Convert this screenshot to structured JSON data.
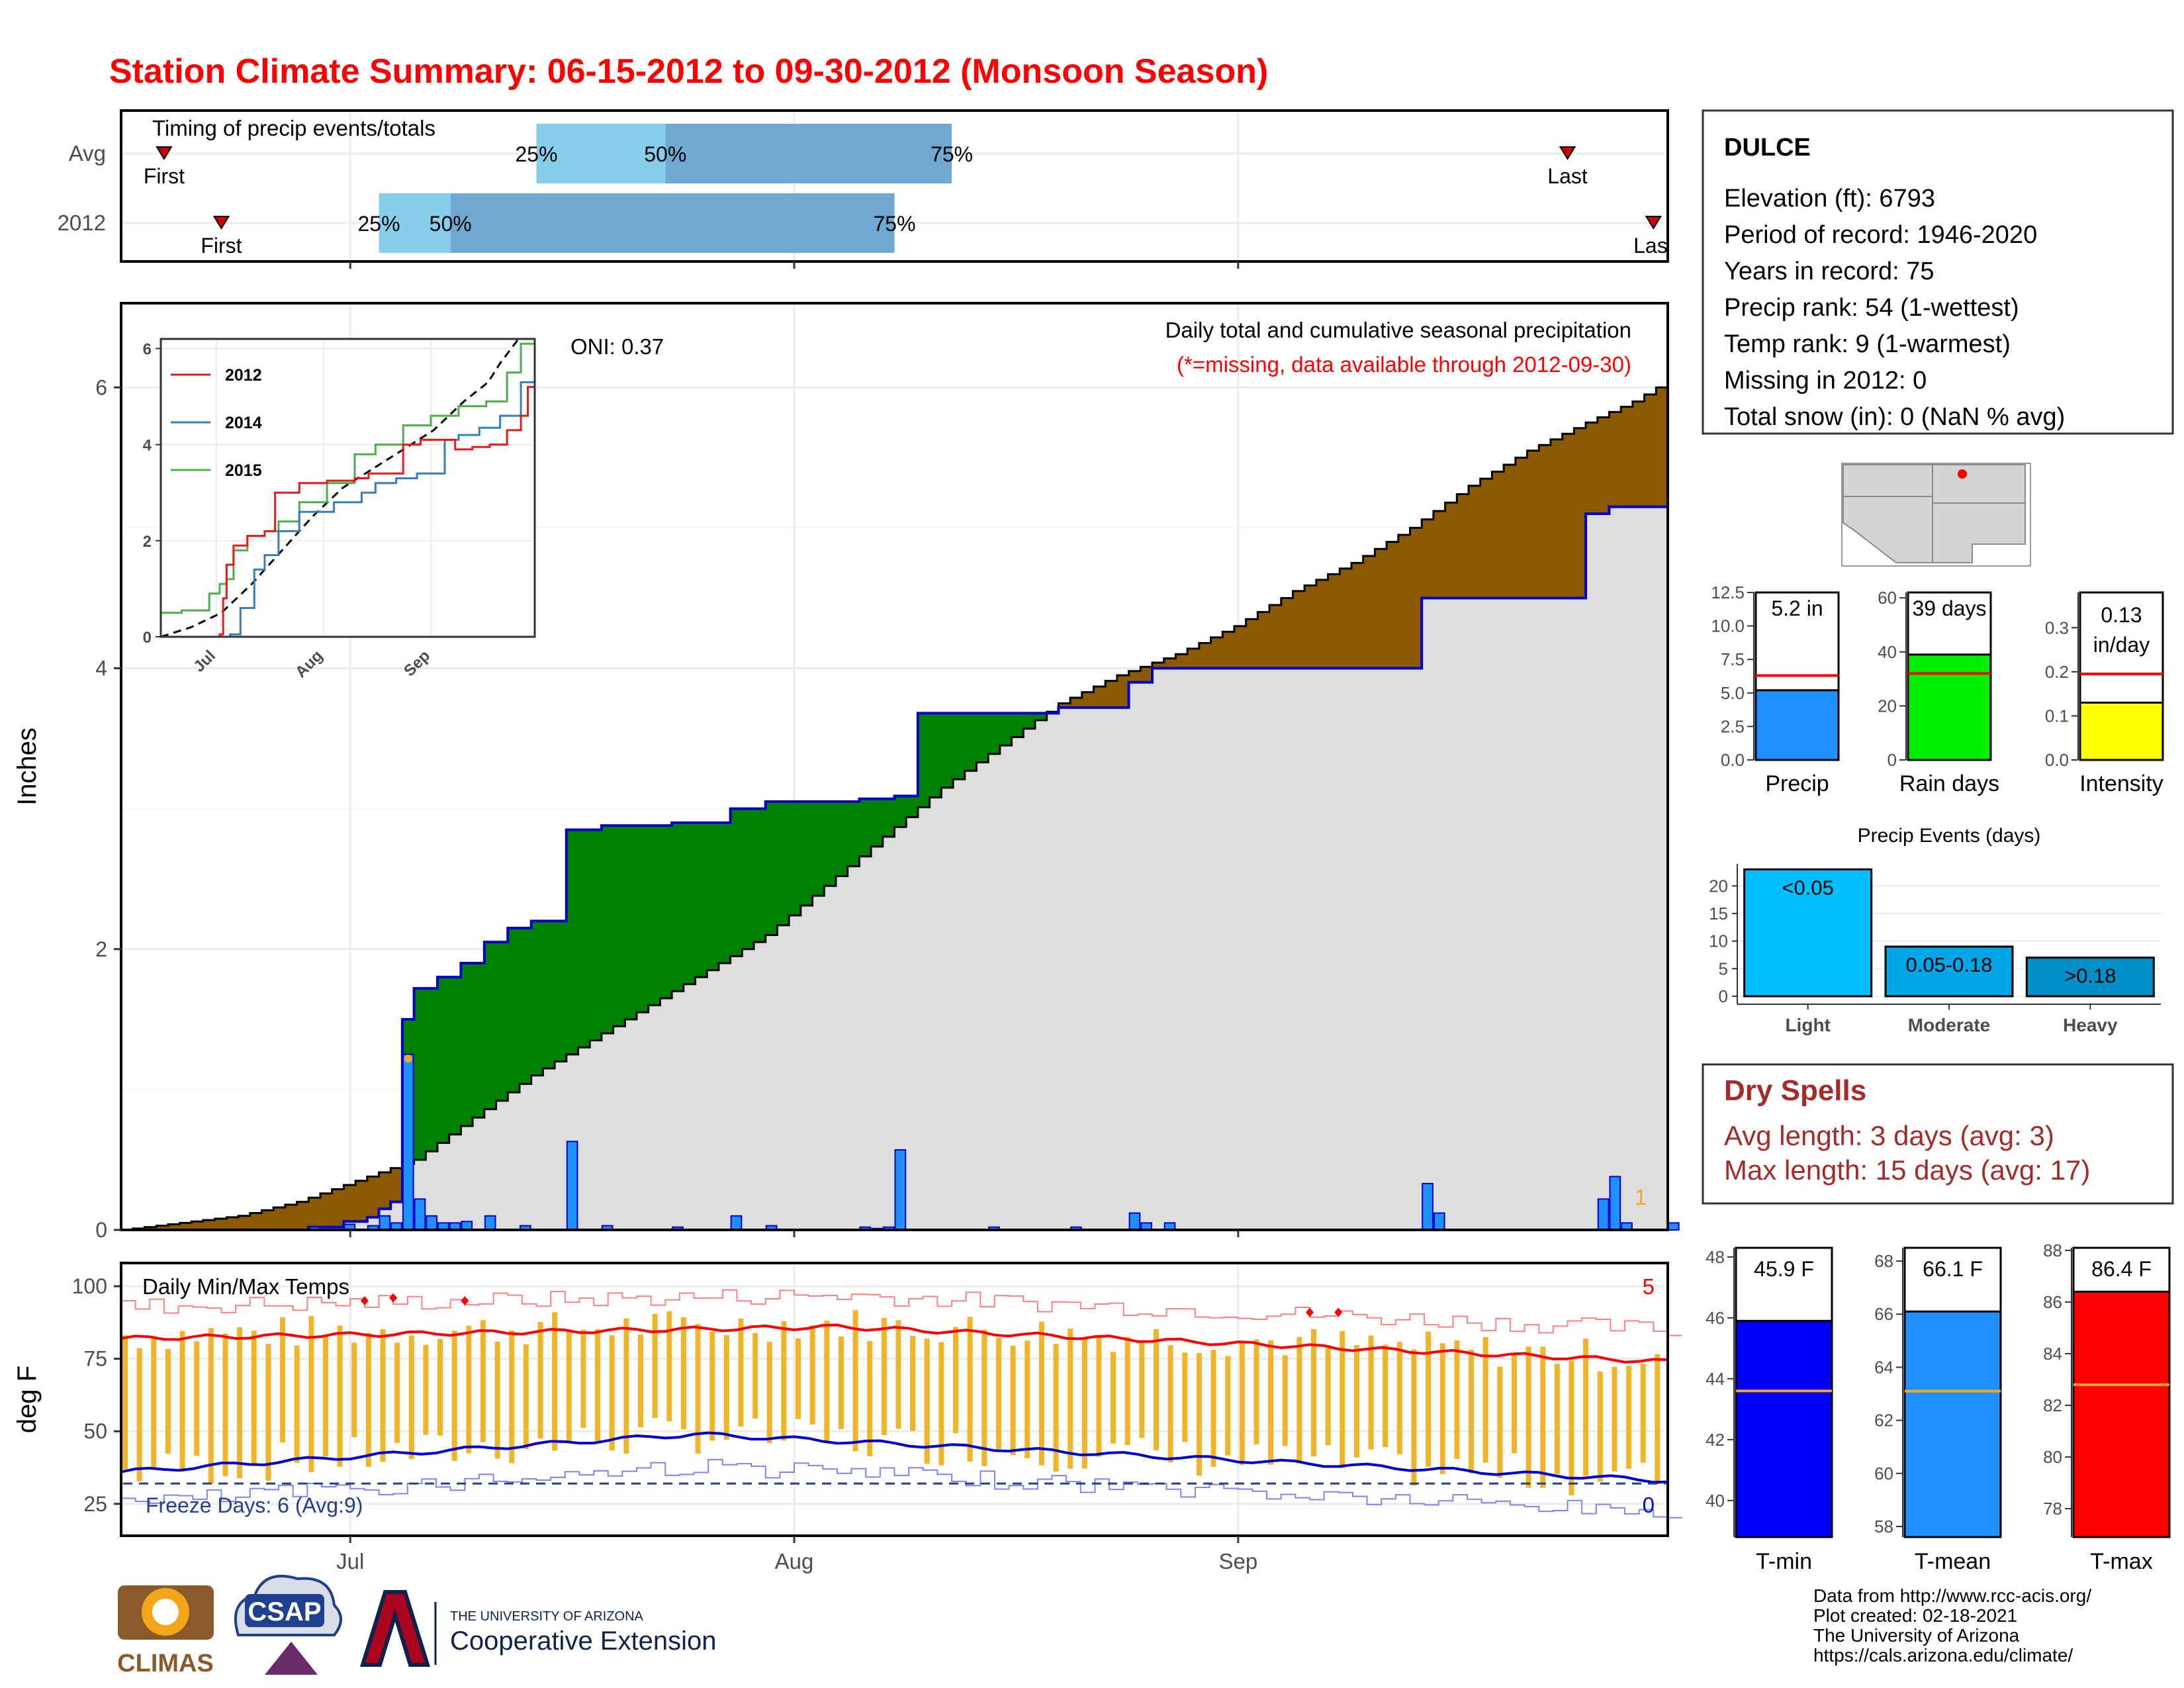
{
  "title": "Station Climate Summary: 06-15-2012 to 09-30-2012 (Monsoon Season)",
  "timing": {
    "title": "Timing of precip events/totals",
    "rows": [
      "Avg",
      "2012"
    ],
    "first_label": "First",
    "last_label": "Last",
    "pct_labels": [
      "25%",
      "50%",
      "75%"
    ],
    "avg": {
      "first": "2012-06-18",
      "p25": "2012-07-14",
      "p50": "2012-07-23",
      "p75": "2012-08-12",
      "last": "2012-09-24"
    },
    "y2012": {
      "first": "2012-06-22",
      "p25": "2012-07-03",
      "p50": "2012-07-08",
      "p75": "2012-08-08",
      "last": "2012-09-30"
    }
  },
  "precip_panel": {
    "ylabel": "Inches",
    "oni": "ONI: 0.37",
    "note1": "Daily total and cumulative seasonal precipitation",
    "note2": "(*=missing, data available through 2012-09-30)",
    "missing_count": "1",
    "inset": {
      "series": [
        {
          "name": "2012",
          "color": "#e41a1c"
        },
        {
          "name": "2014",
          "color": "#377eb8"
        },
        {
          "name": "2015",
          "color": "#4daf4a"
        }
      ],
      "yticks": [
        "0",
        "2",
        "4",
        "6"
      ],
      "xticks": [
        "Jul",
        "Aug",
        "Sep"
      ]
    }
  },
  "temp_panel": {
    "ylabel": "deg F",
    "title": "Daily Min/Max Temps",
    "freeze": "Freeze Days: 6 (Avg:9)",
    "max_count": "5",
    "min_count": "0"
  },
  "xticks": [
    "Jul",
    "Aug",
    "Sep"
  ],
  "station": {
    "name": "DULCE",
    "lines": [
      "Elevation (ft): 6793",
      "Period of record: 1946-2020",
      "Years in record: 75",
      "Precip rank: 54 (1-wettest)",
      "Temp rank: 9 (1-warmest)",
      "Missing in 2012: 0",
      "Total snow (in): 0 (NaN % avg)"
    ]
  },
  "summary_bars": [
    {
      "label": "Precip",
      "value_text": "5.2 in",
      "value": 5.2,
      "avg": 6.3,
      "ymax": 12.5,
      "ticks": [
        "0.0",
        "2.5",
        "5.0",
        "7.5",
        "10.0",
        "12.5"
      ],
      "color": "#1e90ff"
    },
    {
      "label": "Rain days",
      "value_text": "39 days",
      "value": 39,
      "avg": 32,
      "ymax": 62,
      "ticks": [
        "0",
        "20",
        "40",
        "60"
      ],
      "color": "#00ee00"
    },
    {
      "label": "Intensity",
      "value_text": "0.13 in/day",
      "value": 0.13,
      "avg": 0.195,
      "ymax": 0.38,
      "ticks": [
        "0.0",
        "0.1",
        "0.2",
        "0.3"
      ],
      "color": "#ffff00"
    }
  ],
  "events": {
    "title": "Precip Events (days)",
    "categories": [
      "Light",
      "Moderate",
      "Heavy"
    ],
    "labels": [
      "<0.05",
      "0.05-0.18",
      ">0.18"
    ],
    "values": [
      23,
      9,
      7
    ],
    "colors": [
      "#00bfff",
      "#00a5e6",
      "#008fc6"
    ],
    "ticks": [
      "0",
      "5",
      "10",
      "15",
      "20"
    ]
  },
  "dry_spells": {
    "title": "Dry Spells",
    "avg": "Avg length: 3 days (avg: 3)",
    "max": "Max length: 15 days (avg: 17)"
  },
  "temp_bars": [
    {
      "label": "T-min",
      "value_text": "45.9 F",
      "value": 45.9,
      "avg": 43.6,
      "ymin": 38.8,
      "ymax": 48.3,
      "ticks": [
        "40",
        "42",
        "44",
        "46",
        "48"
      ],
      "color": "#0000ff"
    },
    {
      "label": "T-mean",
      "value_text": "66.1 F",
      "value": 66.1,
      "avg": 63.1,
      "ymin": 57.6,
      "ymax": 68.5,
      "ticks": [
        "58",
        "60",
        "62",
        "64",
        "66",
        "68"
      ],
      "color": "#1e90ff"
    },
    {
      "label": "T-max",
      "value_text": "86.4 F",
      "value": 86.4,
      "avg": 82.8,
      "ymin": 76.9,
      "ymax": 88.1,
      "ticks": [
        "78",
        "80",
        "82",
        "84",
        "86",
        "88"
      ],
      "color": "#ff0000"
    }
  ],
  "footer": {
    "logos": [
      "CLIMAS",
      "CSAP",
      "THE UNIVERSITY OF ARIZONA",
      "Cooperative Extension"
    ],
    "credits": [
      "Data from http://www.rcc-acis.org/",
      "Plot created: 02-18-2021",
      "The University of Arizona",
      "https://cals.arizona.edu/climate/"
    ]
  },
  "chart_data": {
    "type": "area",
    "title": "Daily total and cumulative seasonal precipitation",
    "ylabel": "Inches",
    "ylim": [
      0,
      6.6
    ],
    "xlim": [
      "2012-06-15",
      "2012-09-30"
    ],
    "cumulative_avg": [
      [
        0,
        0
      ],
      [
        5,
        0.05
      ],
      [
        10,
        0.1
      ],
      [
        15,
        0.2
      ],
      [
        20,
        0.35
      ],
      [
        25,
        0.5
      ],
      [
        30,
        0.8
      ],
      [
        35,
        1.1
      ],
      [
        40,
        1.35
      ],
      [
        45,
        1.6
      ],
      [
        50,
        1.85
      ],
      [
        55,
        2.1
      ],
      [
        60,
        2.45
      ],
      [
        65,
        2.8
      ],
      [
        70,
        3.15
      ],
      [
        75,
        3.45
      ],
      [
        80,
        3.75
      ],
      [
        85,
        3.95
      ],
      [
        90,
        4.1
      ],
      [
        95,
        4.3
      ],
      [
        100,
        4.55
      ],
      [
        105,
        4.75
      ],
      [
        110,
        5.0
      ],
      [
        115,
        5.3
      ],
      [
        120,
        5.55
      ],
      [
        125,
        5.75
      ],
      [
        129,
        5.9
      ],
      [
        132,
        6.05
      ]
    ],
    "cumulative_2012": [
      [
        0,
        0
      ],
      [
        16,
        0.02
      ],
      [
        19,
        0.06
      ],
      [
        21,
        0.09
      ],
      [
        22,
        0.15
      ],
      [
        23,
        0.2
      ],
      [
        24,
        1.5
      ],
      [
        25,
        1.72
      ],
      [
        27,
        1.8
      ],
      [
        29,
        1.9
      ],
      [
        31,
        2.05
      ],
      [
        33,
        2.15
      ],
      [
        35,
        2.2
      ],
      [
        38,
        2.85
      ],
      [
        41,
        2.88
      ],
      [
        47,
        2.9
      ],
      [
        52,
        3.0
      ],
      [
        55,
        3.05
      ],
      [
        63,
        3.07
      ],
      [
        66,
        3.09
      ],
      [
        68,
        3.68
      ],
      [
        80,
        3.72
      ],
      [
        85,
        3.72
      ],
      [
        86,
        3.9
      ],
      [
        88,
        4.0
      ],
      [
        110,
        4.0
      ],
      [
        111,
        4.5
      ],
      [
        124,
        4.5
      ],
      [
        125,
        5.1
      ],
      [
        127,
        5.15
      ],
      [
        132,
        5.2
      ]
    ],
    "daily_2012": [
      [
        16,
        0.02
      ],
      [
        19,
        0.04
      ],
      [
        21,
        0.03
      ],
      [
        22,
        0.1
      ],
      [
        23,
        0.05
      ],
      [
        24,
        1.25
      ],
      [
        25,
        0.22
      ],
      [
        26,
        0.1
      ],
      [
        27,
        0.05
      ],
      [
        28,
        0.05
      ],
      [
        29,
        0.06
      ],
      [
        31,
        0.1
      ],
      [
        34,
        0.03
      ],
      [
        38,
        0.63
      ],
      [
        41,
        0.03
      ],
      [
        47,
        0.02
      ],
      [
        52,
        0.1
      ],
      [
        55,
        0.03
      ],
      [
        63,
        0.02
      ],
      [
        64,
        0.01
      ],
      [
        65,
        0.02
      ],
      [
        66,
        0.57
      ],
      [
        74,
        0.02
      ],
      [
        81,
        0.02
      ],
      [
        86,
        0.12
      ],
      [
        87,
        0.05
      ],
      [
        89,
        0.05
      ],
      [
        111,
        0.33
      ],
      [
        112,
        0.12
      ],
      [
        126,
        0.22
      ],
      [
        127,
        0.38
      ],
      [
        128,
        0.05
      ],
      [
        132,
        0.05
      ]
    ],
    "temps": {
      "ylim": [
        14,
        108
      ],
      "avg_max_start": 82,
      "avg_max_mid": 86,
      "avg_max_end": 74,
      "avg_min_start": 36,
      "avg_min_mid": 49,
      "avg_min_end": 33,
      "freeze_line": 32
    }
  }
}
